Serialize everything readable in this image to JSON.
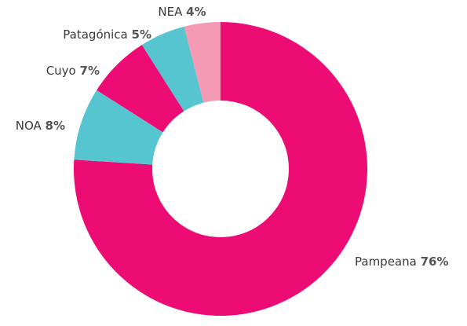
{
  "chart_data": {
    "type": "donut",
    "categories": [
      "Pampeana",
      "NOA",
      "Cuyo",
      "Patagónica",
      "NEA"
    ],
    "values": [
      76,
      8,
      7,
      5,
      4
    ],
    "value_labels": [
      "76%",
      "8%",
      "7%",
      "5%",
      "4%"
    ],
    "colors": [
      "#ec0c73",
      "#56c5d0",
      "#ec0c73",
      "#56c5d0",
      "#f49ab4"
    ]
  }
}
